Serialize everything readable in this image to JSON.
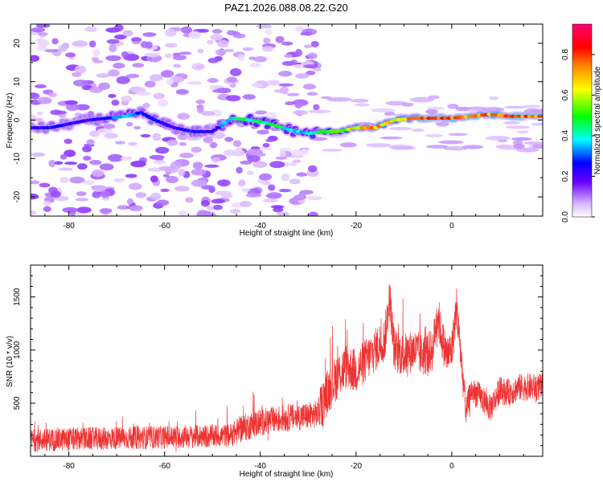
{
  "title": "PAZ1.2026.088.08.22.G20",
  "chart_data": [
    {
      "type": "heatmap",
      "id": "spectrogram",
      "xlabel": "Height of straight line (km)",
      "ylabel": "Frequency (Hz)",
      "xlim": [
        -88,
        19
      ],
      "ylim": [
        -25,
        25
      ],
      "xticks": [
        -80,
        -60,
        -40,
        -20,
        0
      ],
      "yticks": [
        -20,
        -10,
        0,
        10,
        20
      ],
      "colorbar": {
        "label": "Normalized spectral amplitude",
        "range": [
          0,
          0.95
        ],
        "ticks": [
          0.0,
          0.2,
          0.4,
          0.6,
          0.8
        ]
      },
      "ridge": {
        "description": "dominant frequency track (Hz) vs height (km)",
        "x": [
          -87,
          -84,
          -80,
          -76,
          -72,
          -68,
          -65,
          -62,
          -58,
          -54,
          -50,
          -46,
          -42,
          -38,
          -34,
          -30,
          -27,
          -24,
          -20,
          -16,
          -12,
          -8,
          -4,
          0,
          4,
          8,
          12,
          16,
          19
        ],
        "y": [
          -2,
          -2,
          -1,
          0,
          0.5,
          1,
          2,
          0,
          -2,
          -3,
          -3,
          0.5,
          0,
          -1,
          -2.5,
          -3.5,
          -3,
          -3,
          -2,
          -2,
          0,
          0.5,
          0.5,
          0.5,
          1,
          1.5,
          1,
          1,
          1
        ],
        "amplitude": [
          0.25,
          0.3,
          0.25,
          0.25,
          0.3,
          0.45,
          0.3,
          0.3,
          0.25,
          0.3,
          0.25,
          0.45,
          0.5,
          0.5,
          0.45,
          0.4,
          0.5,
          0.6,
          0.75,
          0.8,
          0.7,
          0.8,
          0.9,
          0.85,
          0.85,
          0.8,
          0.85,
          0.9,
          0.85
        ]
      },
      "noise_region_x": [
        -88,
        -28
      ]
    },
    {
      "type": "line",
      "id": "snr",
      "xlabel": "Height of straight line (km)",
      "ylabel": "SNR (10 * v/v)",
      "xlim": [
        -88,
        19
      ],
      "ylim": [
        0,
        1800
      ],
      "xticks": [
        -80,
        -60,
        -40,
        -20,
        0
      ],
      "yticks": [
        500,
        1000,
        1500
      ],
      "color": "#ee3333",
      "envelope": {
        "x": [
          -88,
          -80,
          -70,
          -60,
          -50,
          -46,
          -44,
          -40,
          -35,
          -30,
          -28,
          -26,
          -24,
          -22,
          -20,
          -18,
          -16,
          -14,
          -13,
          -12,
          -10,
          -8,
          -6,
          -4,
          -3,
          -2,
          -1,
          0,
          1,
          2,
          3,
          4,
          6,
          8,
          10,
          12,
          14,
          16,
          19
        ],
        "y": [
          150,
          160,
          170,
          180,
          190,
          200,
          260,
          320,
          360,
          380,
          400,
          600,
          750,
          850,
          800,
          900,
          1000,
          1100,
          1500,
          1000,
          950,
          1000,
          950,
          1000,
          1350,
          1100,
          950,
          1000,
          1400,
          900,
          420,
          620,
          560,
          450,
          620,
          600,
          650,
          650,
          650
        ]
      },
      "noise_amplitude": {
        "x": [
          -88,
          -46,
          -45,
          -28,
          -27,
          -5,
          2,
          3,
          19
        ],
        "y": [
          110,
          110,
          130,
          130,
          220,
          200,
          200,
          130,
          130
        ]
      }
    }
  ]
}
